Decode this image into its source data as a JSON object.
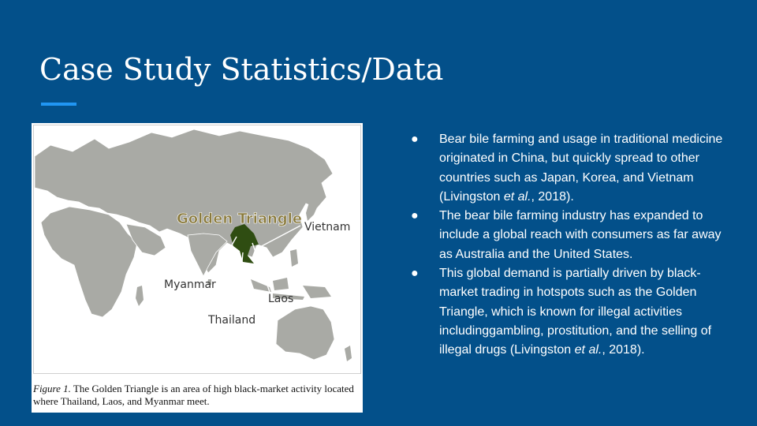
{
  "slide": {
    "title": "Case Study Statistics/Data"
  },
  "colors": {
    "background": "#03508a",
    "accent": "#2196f3",
    "land": "#a9aaa5",
    "golden_triangle": "#2f4d12",
    "label_gold": "#8a7a3c"
  },
  "map": {
    "region_label": "Golden Triangle",
    "countries": [
      "Vietnam",
      "Myanmar",
      "Laos",
      "Thailand"
    ]
  },
  "figure": {
    "caption_label": "Figure 1.",
    "caption_text": " The Golden Triangle is an area of high black-market activity located where Thailand, Laos, and Myanmar meet."
  },
  "bullets": [
    {
      "marker": "●",
      "segments": [
        {
          "text": "Bear bile farming and usage in traditional medicine originated in China, but quickly spread to other countries such as Japan, Korea, and Vietnam (Livingston "
        },
        {
          "text": "et al.",
          "italic": true
        },
        {
          "text": ", 2018)."
        }
      ]
    },
    {
      "marker": "●",
      "segments": [
        {
          "text": "The bear bile farming industry has expanded to include a global reach with consumers as far away as Australia and the United States."
        }
      ]
    },
    {
      "marker": "●",
      "segments": [
        {
          "text": "This global demand is partially driven by black-market trading in hotspots such as the Golden Triangle, which is known for illegal activities includinggambling, prostitution, and the selling of illegal drugs (Livingston "
        },
        {
          "text": "et al.",
          "italic": true
        },
        {
          "text": ", 2018)."
        }
      ]
    }
  ]
}
